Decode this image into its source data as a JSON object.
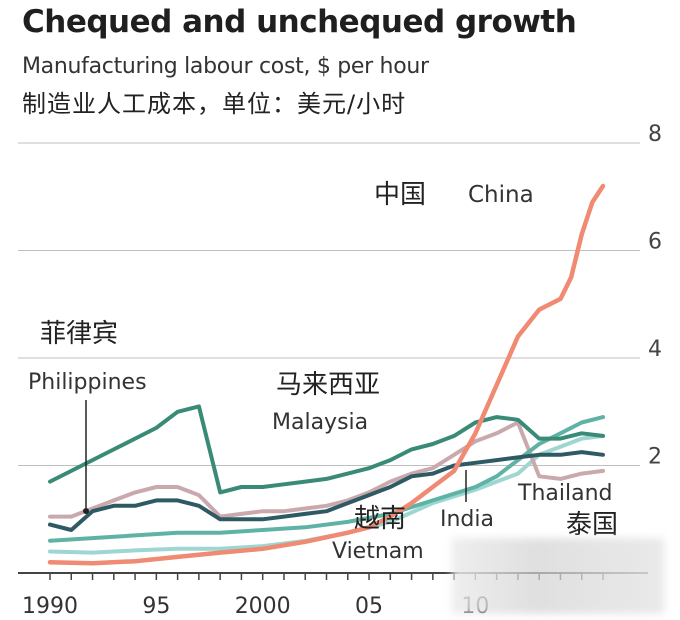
{
  "header": {
    "title": "Chequed and unchequed growth",
    "subtitle": "Manufacturing labour cost, $ per hour",
    "subtitle_zh": "制造业人工成本，单位：美元/小时"
  },
  "colors": {
    "China": "#f08a72",
    "Philippines": "#3a8a78",
    "Malaysia": "#5fb3a5",
    "Thailand": "#c9a9ae",
    "India": "#2e5a64",
    "Vietnam": "#9ed6d2",
    "grid": "#bfbfbf",
    "axis": "#555555"
  },
  "chart_data": {
    "type": "line",
    "title": "Chequed and unchequed growth",
    "ylabel": "Manufacturing labour cost, $ per hour",
    "xlim": [
      1990,
      2016
    ],
    "ylim": [
      0,
      8
    ],
    "y_ticks": [
      2,
      4,
      6,
      8
    ],
    "x_tick_labels": [
      {
        "x": 1990,
        "label": "1990"
      },
      {
        "x": 1995,
        "label": "95"
      },
      {
        "x": 2000,
        "label": "2000"
      },
      {
        "x": 2005,
        "label": "05"
      },
      {
        "x": 2010,
        "label": "10"
      }
    ],
    "grid": "horizontal",
    "series": [
      {
        "name": "China",
        "name_zh": "中国",
        "x": [
          1990,
          1992,
          1994,
          1996,
          1998,
          2000,
          2002,
          2004,
          2005,
          2006,
          2007,
          2008,
          2009,
          2010,
          2011,
          2012,
          2013,
          2014,
          2014.5,
          2015,
          2015.5,
          2016
        ],
        "values": [
          0.2,
          0.18,
          0.22,
          0.3,
          0.38,
          0.45,
          0.58,
          0.75,
          0.85,
          1.05,
          1.3,
          1.6,
          1.9,
          2.6,
          3.5,
          4.4,
          4.9,
          5.1,
          5.5,
          6.3,
          6.9,
          7.2
        ]
      },
      {
        "name": "Philippines",
        "name_zh": "菲律宾",
        "x": [
          1990,
          1991,
          1992,
          1993,
          1994,
          1995,
          1996,
          1997,
          1998,
          1999,
          2000,
          2001,
          2002,
          2003,
          2004,
          2005,
          2006,
          2007,
          2008,
          2009,
          2010,
          2011,
          2012,
          2013,
          2014,
          2015,
          2016
        ],
        "values": [
          1.7,
          1.9,
          2.1,
          2.3,
          2.5,
          2.7,
          3.0,
          3.1,
          1.5,
          1.6,
          1.6,
          1.65,
          1.7,
          1.75,
          1.85,
          1.95,
          2.1,
          2.3,
          2.4,
          2.55,
          2.8,
          2.9,
          2.85,
          2.5,
          2.5,
          2.6,
          2.55
        ]
      },
      {
        "name": "Malaysia",
        "name_zh": "马来西亚",
        "x": [
          1990,
          1992,
          1994,
          1996,
          1998,
          2000,
          2002,
          2004,
          2006,
          2008,
          2010,
          2011,
          2012,
          2013,
          2014,
          2015,
          2016
        ],
        "values": [
          0.6,
          0.65,
          0.7,
          0.75,
          0.75,
          0.8,
          0.85,
          0.95,
          1.1,
          1.35,
          1.6,
          1.8,
          2.1,
          2.4,
          2.6,
          2.8,
          2.9
        ]
      },
      {
        "name": "Thailand",
        "name_zh": "泰国",
        "x": [
          1990,
          1991,
          1992,
          1993,
          1994,
          1995,
          1996,
          1997,
          1998,
          1999,
          2000,
          2001,
          2002,
          2003,
          2004,
          2005,
          2006,
          2007,
          2008,
          2009,
          2010,
          2011,
          2012,
          2013,
          2014,
          2015,
          2016
        ],
        "values": [
          1.05,
          1.05,
          1.2,
          1.35,
          1.5,
          1.6,
          1.6,
          1.45,
          1.05,
          1.1,
          1.15,
          1.15,
          1.2,
          1.25,
          1.35,
          1.5,
          1.7,
          1.85,
          1.95,
          2.2,
          2.45,
          2.6,
          2.8,
          1.8,
          1.75,
          1.85,
          1.9
        ]
      },
      {
        "name": "India",
        "name_zh": "",
        "x": [
          1990,
          1991,
          1992,
          1993,
          1994,
          1995,
          1996,
          1997,
          1998,
          1999,
          2000,
          2001,
          2002,
          2003,
          2004,
          2005,
          2006,
          2007,
          2008,
          2009,
          2010,
          2011,
          2012,
          2013,
          2014,
          2015,
          2016
        ],
        "values": [
          0.9,
          0.8,
          1.15,
          1.25,
          1.25,
          1.35,
          1.35,
          1.25,
          1.0,
          1.0,
          1.0,
          1.05,
          1.1,
          1.15,
          1.3,
          1.45,
          1.6,
          1.8,
          1.85,
          2.0,
          2.05,
          2.1,
          2.15,
          2.2,
          2.2,
          2.25,
          2.2
        ]
      },
      {
        "name": "Vietnam",
        "name_zh": "越南",
        "x": [
          1990,
          1992,
          1994,
          1996,
          1998,
          2000,
          2002,
          2004,
          2006,
          2008,
          2010,
          2011,
          2012,
          2013,
          2014,
          2015,
          2016
        ],
        "values": [
          0.4,
          0.38,
          0.42,
          0.45,
          0.45,
          0.5,
          0.6,
          0.75,
          0.95,
          1.3,
          1.55,
          1.7,
          1.85,
          2.2,
          2.35,
          2.5,
          2.55
        ]
      }
    ],
    "annotations": [
      {
        "series": "China",
        "label": "China",
        "label_zh": "中国"
      },
      {
        "series": "Philippines",
        "label": "Philippines",
        "label_zh": "菲律宾"
      },
      {
        "series": "Malaysia",
        "label": "Malaysia",
        "label_zh": "马来西亚"
      },
      {
        "series": "India",
        "label": "India",
        "label_zh": ""
      },
      {
        "series": "Vietnam",
        "label": "Vietnam",
        "label_zh": "越南"
      },
      {
        "series": "Thailand",
        "label": "Thailand",
        "label_zh": "泰国"
      }
    ]
  }
}
